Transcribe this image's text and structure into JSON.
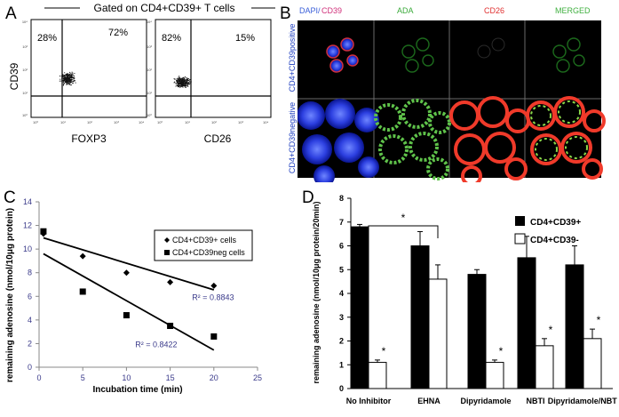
{
  "panels": {
    "a": "A",
    "b": "B",
    "c": "C",
    "d": "D"
  },
  "panel_a": {
    "gate_label": "Gated on CD4+CD39+ T cells",
    "plot1": {
      "ylabel": "CD39",
      "xlabel": "FOXP3",
      "q_upper_left": "28%",
      "q_upper_right": "72%"
    },
    "plot2": {
      "xlabel": "CD26",
      "q_upper_left": "82%",
      "q_upper_right": "15%"
    },
    "y_ticks": [
      "10⁴",
      "10³",
      "10²",
      "10¹",
      "10⁰"
    ],
    "x_ticks": [
      "10⁰",
      "10¹",
      "10²",
      "10³",
      "10⁴"
    ]
  },
  "panel_b": {
    "col_headers": {
      "dapi": "DAPI/",
      "cd39": "CD39",
      "ada": "ADA",
      "cd26": "CD26",
      "merged": "MERGED"
    },
    "row_labels": [
      "CD4+CD39positive",
      "CD4+CD39negative"
    ],
    "colors": {
      "dapi": "#3a5fd9",
      "cd39": "#d0307a",
      "ada": "#3aaa3a",
      "cd26": "#e03030",
      "merged": "#40b040"
    }
  },
  "chart_data": [
    {
      "type": "scatter",
      "panel": "C",
      "xlabel": "Incubation time (min)",
      "ylabel": "remaining adenosine (nmol/10μg protein)",
      "xlim": [
        0,
        25
      ],
      "ylim": [
        0,
        14
      ],
      "x_ticks": [
        "0",
        "5",
        "10",
        "15",
        "20",
        "25"
      ],
      "y_ticks": [
        "0",
        "2",
        "4",
        "6",
        "8",
        "10",
        "12",
        "14"
      ],
      "legend_position": "top-right",
      "series": [
        {
          "name": "CD4+CD39+ cells",
          "marker": "diamond",
          "x": [
            0.5,
            5,
            10,
            15,
            20
          ],
          "values": [
            11.3,
            9.4,
            8.0,
            7.2,
            6.9
          ],
          "trend": [
            10.95,
            6.55
          ],
          "r2": "R² = 0.8843"
        },
        {
          "name": "CD4+CD39neg cells",
          "marker": "square",
          "x": [
            0.5,
            5,
            10,
            15,
            20
          ],
          "values": [
            11.5,
            6.4,
            4.4,
            3.5,
            2.6
          ],
          "trend": [
            9.6,
            1.45
          ],
          "r2": "R² = 0.8422"
        }
      ]
    },
    {
      "type": "bar",
      "panel": "D",
      "ylabel": "remaining adenosine (nmol/10μg protein/20min)",
      "categories": [
        "No Inhibitor",
        "EHNA",
        "Dipyridamole",
        "NBTI",
        "Dipyridamole/NBTI"
      ],
      "ylim": [
        0,
        8
      ],
      "y_ticks": [
        "0",
        "1",
        "2",
        "3",
        "4",
        "5",
        "6",
        "7",
        "8"
      ],
      "legend_position": "top-right",
      "series": [
        {
          "name": "CD4+CD39+",
          "color": "#000000",
          "values": [
            6.8,
            6.0,
            4.8,
            5.5,
            5.2
          ],
          "err": [
            0.1,
            0.6,
            0.2,
            0.9,
            0.8
          ]
        },
        {
          "name": "CD4+CD39-",
          "color": "#ffffff",
          "values": [
            1.1,
            4.6,
            1.1,
            1.8,
            2.1
          ],
          "err": [
            0.1,
            0.6,
            0.1,
            0.3,
            0.4
          ]
        }
      ],
      "significance": [
        "*",
        "*",
        "*",
        "*"
      ],
      "bracket_star": "*"
    }
  ]
}
